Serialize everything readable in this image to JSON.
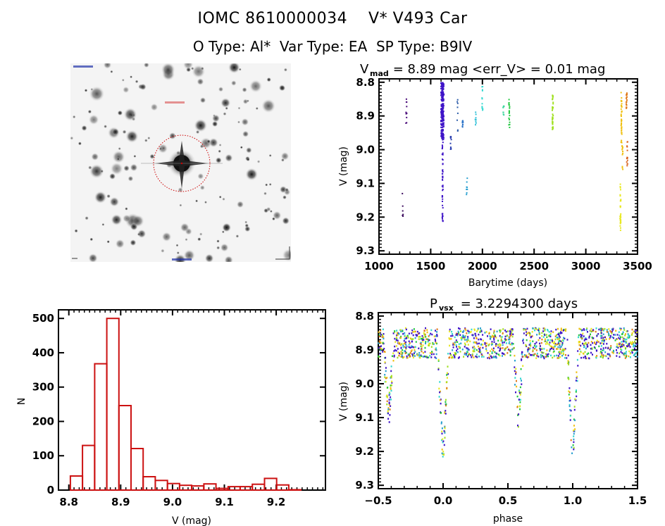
{
  "header": {
    "title": "IOMC 8610000034    V* V493 Car",
    "subtitle": "O Type: Al*  Var Type: EA  SP Type: B9IV"
  },
  "sky_image": {
    "description": "Sky cutout, inverted grayscale star field",
    "target_circle_color": "#cc0000"
  },
  "chart_data": [
    {
      "id": "light-curve",
      "type": "scatter",
      "title_parts": {
        "main": "V",
        "sub": "mad",
        "rest": " = 8.89 mag <err_V> = 0.01 mag"
      },
      "xlabel": "Barytime (days)",
      "ylabel": "V (mag)",
      "xlim": [
        1000,
        3500
      ],
      "ylim": [
        9.31,
        8.79
      ],
      "xticks": [
        1000,
        1500,
        2000,
        2500,
        3000,
        3500
      ],
      "xtick_labels": [
        "1000",
        "1500",
        "2000",
        "2500",
        "3000",
        "3500"
      ],
      "yticks": [
        8.8,
        8.9,
        9.0,
        9.1,
        9.2,
        9.3
      ],
      "ytick_labels": [
        "8.8",
        "8.9",
        "9.0",
        "9.1",
        "9.2",
        "9.3"
      ],
      "clusters": [
        {
          "x": 1230,
          "ymin": 9.11,
          "ymax": 9.2,
          "color": "#3b0a5c",
          "n": 6
        },
        {
          "x": 1265,
          "ymin": 8.85,
          "ymax": 8.93,
          "color": "#4b0d7a",
          "n": 10
        },
        {
          "x": 1610,
          "ymin": 8.8,
          "ymax": 8.97,
          "color": "#3f15c8",
          "n": 160,
          "dense": true
        },
        {
          "x": 1615,
          "ymin": 8.97,
          "ymax": 9.22,
          "color": "#3f15c8",
          "n": 50
        },
        {
          "x": 1695,
          "ymin": 8.96,
          "ymax": 9.0,
          "color": "#2a3fb0",
          "n": 10
        },
        {
          "x": 1760,
          "ymin": 8.85,
          "ymax": 8.95,
          "color": "#2a5aa8",
          "n": 8
        },
        {
          "x": 1810,
          "ymin": 8.91,
          "ymax": 8.94,
          "color": "#2a73c8",
          "n": 8
        },
        {
          "x": 1850,
          "ymin": 9.08,
          "ymax": 9.14,
          "color": "#2aa0d0",
          "n": 8
        },
        {
          "x": 1935,
          "ymin": 8.88,
          "ymax": 8.93,
          "color": "#30c0d8",
          "n": 8
        },
        {
          "x": 2000,
          "ymin": 8.81,
          "ymax": 8.89,
          "color": "#33d8d0",
          "n": 12
        },
        {
          "x": 2205,
          "ymin": 8.87,
          "ymax": 8.9,
          "color": "#40d8a0",
          "n": 10
        },
        {
          "x": 2260,
          "ymin": 8.85,
          "ymax": 8.94,
          "color": "#22c840",
          "n": 18
        },
        {
          "x": 2680,
          "ymin": 8.83,
          "ymax": 8.94,
          "color": "#a0e020",
          "n": 40
        },
        {
          "x": 3335,
          "ymin": 9.1,
          "ymax": 9.24,
          "color": "#e8e820",
          "n": 30
        },
        {
          "x": 3345,
          "ymin": 8.83,
          "ymax": 8.98,
          "color": "#f0c010",
          "n": 40
        },
        {
          "x": 3355,
          "ymin": 8.98,
          "ymax": 9.06,
          "color": "#f0c010",
          "n": 12
        },
        {
          "x": 3395,
          "ymin": 8.83,
          "ymax": 8.88,
          "color": "#e07a1a",
          "n": 20
        },
        {
          "x": 3400,
          "ymin": 8.96,
          "ymax": 9.06,
          "color": "#d8601a",
          "n": 14
        }
      ]
    },
    {
      "id": "histogram",
      "type": "bar",
      "xlabel": "V (mag)",
      "ylabel": "N",
      "xlim": [
        8.78,
        9.295
      ],
      "ylim": [
        0,
        525
      ],
      "bin_start": 8.803,
      "bin_width": 0.0234,
      "values": [
        41,
        130,
        368,
        500,
        246,
        121,
        39,
        28,
        19,
        14,
        12,
        18,
        5,
        10,
        10,
        17,
        34,
        15,
        1
      ],
      "xticks": [
        8.8,
        8.9,
        9.0,
        9.1,
        9.2
      ],
      "xtick_labels": [
        "8.8",
        "8.9",
        "9.0",
        "9.1",
        "9.2"
      ],
      "yticks": [
        0,
        100,
        200,
        300,
        400,
        500
      ],
      "ytick_labels": [
        "0",
        "100",
        "200",
        "300",
        "400",
        "500"
      ],
      "bar_color": "#cc1111"
    },
    {
      "id": "phase-curve",
      "type": "scatter",
      "title_parts": {
        "main": "P",
        "sub": "vsx",
        "rest": " = 3.2294300 days"
      },
      "period_days": 3.22943,
      "xlabel": "phase",
      "ylabel": "V (mag)",
      "xlim": [
        -0.5,
        1.5
      ],
      "ylim": [
        9.31,
        8.79
      ],
      "xticks": [
        -0.5,
        0.0,
        0.5,
        1.0,
        1.5
      ],
      "xtick_labels": [
        "−0.5",
        "0.0",
        "0.5",
        "1.0",
        "1.5"
      ],
      "yticks": [
        8.8,
        8.9,
        9.0,
        9.1,
        9.2,
        9.3
      ],
      "ytick_labels": [
        "8.8",
        "8.9",
        "9.0",
        "9.1",
        "9.2",
        "9.3"
      ],
      "baseline_mag": 8.88,
      "primary_eclipse": {
        "phase": 0.0,
        "depth_mag": 9.24,
        "halfwidth": 0.045
      },
      "secondary_feature": {
        "phase": -0.42,
        "depth_mag": 9.14
      },
      "colors": [
        "#3f15c8",
        "#3f15c8",
        "#3f15c8",
        "#e07a1a",
        "#f0c010",
        "#a0e020",
        "#22c840",
        "#33d8d0",
        "#2aa0d0",
        "#e8e820"
      ]
    }
  ]
}
